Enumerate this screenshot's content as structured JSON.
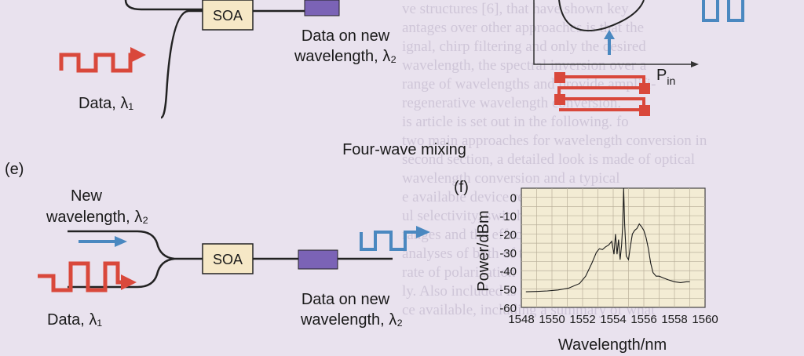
{
  "colors": {
    "signal_red": "#d9483b",
    "probe_blue": "#4a88c0",
    "soa_box": "#f6e8c6",
    "filter": "#7b63b6",
    "plot_bg": "#f3ecd4",
    "page_bg": "#e9e2ee"
  },
  "top_panel": {
    "soa_label": "SOA",
    "data_new_line1": "Data on new",
    "data_new_line2": "wavelength, λ₂",
    "data_label": "Data, λ₁",
    "pin_label": "P",
    "pin_sub": "in"
  },
  "section_title": "Four-wave mixing",
  "panel_e": {
    "tag": "(e)",
    "new_line1": "New",
    "new_line2": "wavelength, λ₂",
    "soa_label": "SOA",
    "data_label": "Data, λ₁",
    "data_new_line1": "Data on new",
    "data_new_line2": "wavelength, λ₂"
  },
  "panel_f": {
    "tag": "(f)"
  },
  "background_text": [
    "ve structures [6], that have shown key",
    "antages over other approaches is that the",
    "ignal, chirp filtering and only the desired",
    "wavelength, the spectral inversion over a",
    "range of wavelengths and provide amplifi-",
    "regenerative wavelength conversion.",
    "is article is set out in the following. fo",
    "two main approaches for wavelength conversion in",
    "second section, a detailed look is made of optical",
    "wavelength conversion and a typical",
    "e available device results, including gain",
    "ul selectivity, switching speed and",
    "ranges and the effect of the gain on the",
    "analyses of both of the gain modulation",
    "rate of polarization",
    "ly. Also included is a description of optical and",
    "ce available, including a summary of what"
  ],
  "chart_data": {
    "type": "line",
    "title": "",
    "xlabel": "Wavelength/nm",
    "ylabel": "Power/dBm",
    "xlim": [
      1548,
      1560
    ],
    "ylim": [
      -60,
      5
    ],
    "xticks": [
      1548,
      1550,
      1552,
      1554,
      1556,
      1558,
      1560
    ],
    "yticks": [
      0,
      -10,
      -20,
      -30,
      -40,
      -50,
      -60
    ],
    "grid": true,
    "series": [
      {
        "x": [
          1548.3,
          1549.0,
          1549.7,
          1550.4,
          1551.1,
          1551.8,
          1552.2,
          1552.6,
          1552.9,
          1553.1,
          1553.3,
          1553.5,
          1553.7,
          1553.9,
          1554.05,
          1554.15,
          1554.25,
          1554.35,
          1554.45,
          1554.55,
          1554.62,
          1554.68,
          1554.75,
          1554.85,
          1555.0,
          1555.1,
          1555.25,
          1555.4,
          1555.55,
          1555.7,
          1555.85,
          1556.0,
          1556.15,
          1556.3,
          1556.45,
          1556.6,
          1556.8,
          1557.0,
          1557.3,
          1557.6,
          1558.0,
          1558.4,
          1558.8,
          1559.0
        ],
        "y": [
          -51.5,
          -51.3,
          -51,
          -50.5,
          -49.5,
          -47,
          -43,
          -36,
          -30,
          -28,
          -28.5,
          -27,
          -26,
          -24,
          -31,
          -20,
          -31,
          -23,
          -34,
          -26,
          -15,
          5,
          -15,
          -32,
          -34,
          -28,
          -20,
          -18,
          -17,
          -14.5,
          -16,
          -18,
          -22,
          -28,
          -36,
          -41,
          -43,
          -43,
          -44,
          -45,
          -46,
          -46.5,
          -46,
          -46
        ]
      }
    ]
  }
}
